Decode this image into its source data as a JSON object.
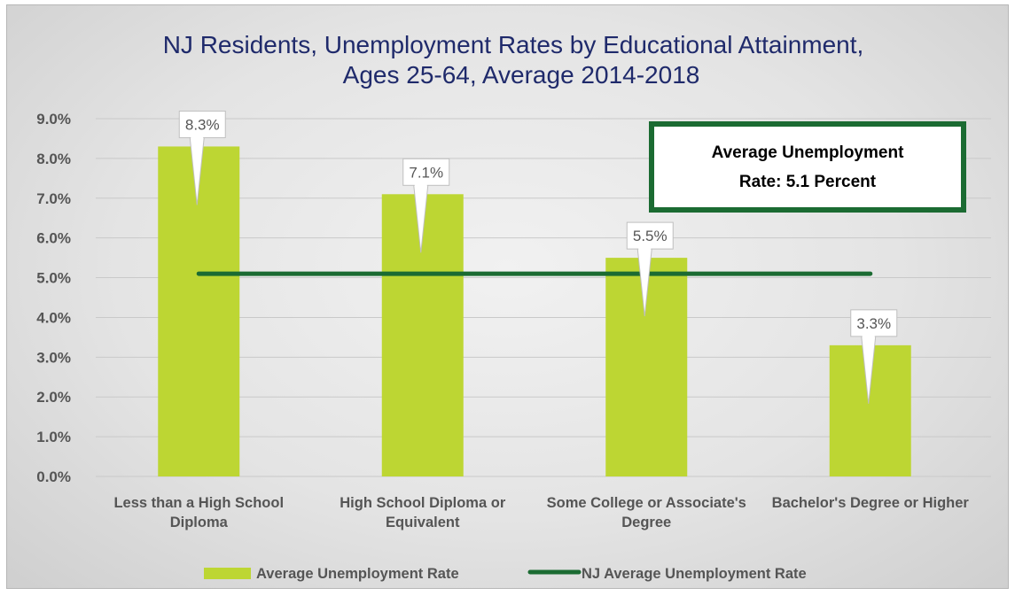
{
  "chart_data": {
    "type": "bar",
    "title": "NJ Residents, Unemployment Rates by Educational Attainment,",
    "subtitle": "Ages 25-64, Average 2014-2018",
    "categories": [
      [
        "Less than a High School",
        "Diploma"
      ],
      [
        "High School Diploma or",
        "Equivalent"
      ],
      [
        "Some College or Associate's",
        "Degree"
      ],
      [
        "Bachelor's Degree or Higher"
      ]
    ],
    "series": [
      {
        "name": "Average Unemployment Rate",
        "type": "bar",
        "color": "#bdd633",
        "values": [
          8.3,
          7.1,
          5.5,
          3.3
        ],
        "data_labels": [
          "8.3%",
          "7.1%",
          "5.5%",
          "3.3%"
        ]
      },
      {
        "name": "NJ Average Unemployment Rate",
        "type": "line",
        "color": "#1b6b32",
        "values": [
          5.1,
          5.1,
          5.1,
          5.1
        ]
      }
    ],
    "yticks": [
      "0.0%",
      "1.0%",
      "2.0%",
      "3.0%",
      "4.0%",
      "5.0%",
      "6.0%",
      "7.0%",
      "8.0%",
      "9.0%"
    ],
    "ylim": [
      0,
      9
    ],
    "grid": true,
    "legend_position": "bottom",
    "annotation": {
      "lines": [
        "Average Unemployment",
        "Rate: 5.1 Percent"
      ],
      "border_color": "#1b6b32"
    }
  }
}
